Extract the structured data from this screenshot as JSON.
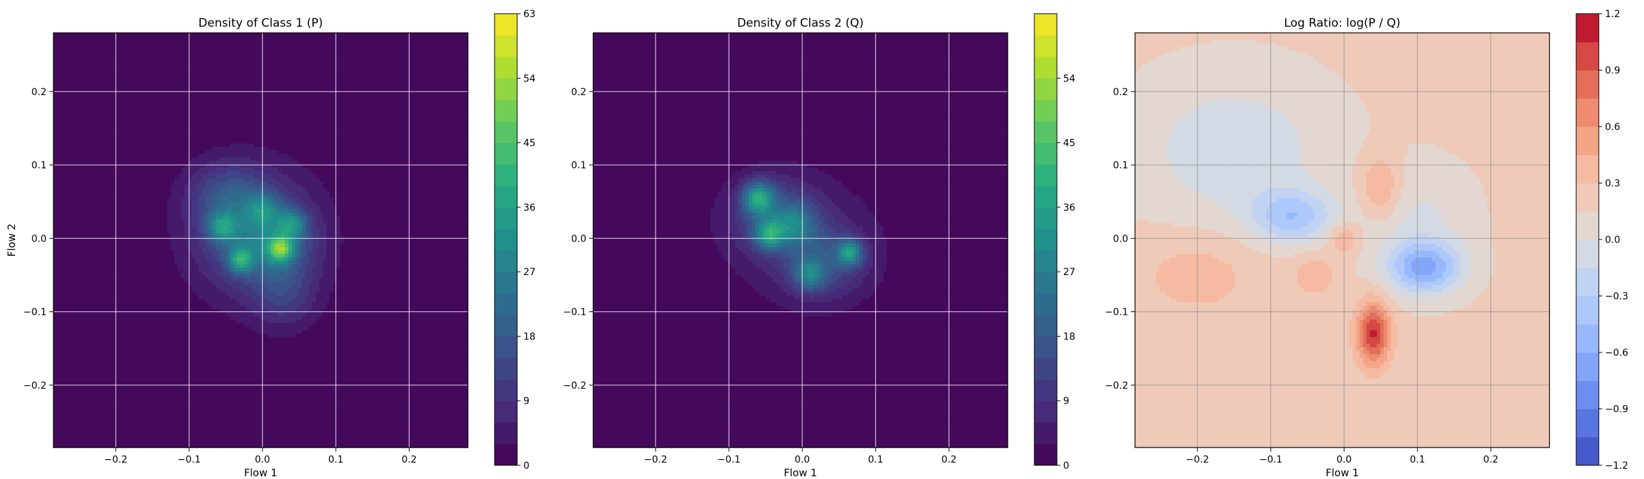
{
  "chart_data": [
    {
      "type": "heatmap",
      "title": "Density of Class 1 (P)",
      "xlabel": "Flow 1",
      "ylabel": "Flow 2",
      "xlim": [
        -0.285,
        0.28
      ],
      "ylim": [
        -0.285,
        0.28
      ],
      "xticks": [
        -0.2,
        -0.1,
        0.0,
        0.1,
        0.2
      ],
      "yticks": [
        -0.2,
        -0.1,
        0.0,
        0.1,
        0.2
      ],
      "xtick_labels": [
        "−0.2",
        "−0.1",
        "0.0",
        "0.1",
        "0.2"
      ],
      "ytick_labels": [
        "−0.2",
        "−0.1",
        "0.0",
        "0.1",
        "0.2"
      ],
      "grid": true,
      "colormap": "viridis",
      "colorbar": {
        "min": 0,
        "max": 63,
        "ticks": [
          0,
          9,
          18,
          27,
          36,
          45,
          54,
          63
        ],
        "tick_labels": [
          "0",
          "9",
          "18",
          "27",
          "36",
          "45",
          "54",
          "63"
        ],
        "levels": 21
      },
      "blobs": [
        {
          "x": 0.0,
          "y": 0.0,
          "sx": 0.08,
          "sy": 0.085,
          "w": 5
        },
        {
          "x": -0.02,
          "y": 0.01,
          "sx": 0.05,
          "sy": 0.05,
          "w": 14
        },
        {
          "x": 0.02,
          "y": -0.01,
          "sx": 0.035,
          "sy": 0.035,
          "w": 12
        },
        {
          "x": -0.05,
          "y": 0.06,
          "sx": 0.035,
          "sy": 0.03,
          "w": 10
        },
        {
          "x": 0.03,
          "y": -0.08,
          "sx": 0.03,
          "sy": 0.03,
          "w": 8
        },
        {
          "x": 0.025,
          "y": -0.015,
          "sx": 0.012,
          "sy": 0.012,
          "w": 30
        },
        {
          "x": -0.03,
          "y": -0.03,
          "sx": 0.012,
          "sy": 0.012,
          "w": 25
        },
        {
          "x": -0.055,
          "y": 0.015,
          "sx": 0.014,
          "sy": 0.014,
          "w": 20
        },
        {
          "x": 0.04,
          "y": 0.02,
          "sx": 0.014,
          "sy": 0.014,
          "w": 18
        },
        {
          "x": 0.0,
          "y": 0.04,
          "sx": 0.015,
          "sy": 0.015,
          "w": 14
        }
      ]
    },
    {
      "type": "heatmap",
      "title": "Density of Class 2 (Q)",
      "xlabel": "Flow 1",
      "ylabel": "",
      "xlim": [
        -0.285,
        0.28
      ],
      "ylim": [
        -0.285,
        0.28
      ],
      "xticks": [
        -0.2,
        -0.1,
        0.0,
        0.1,
        0.2
      ],
      "yticks": [
        -0.2,
        -0.1,
        0.0,
        0.1,
        0.2
      ],
      "xtick_labels": [
        "−0.2",
        "−0.1",
        "0.0",
        "0.1",
        "0.2"
      ],
      "ytick_labels": [
        "−0.2",
        "−0.1",
        "0.0",
        "0.1",
        "0.2"
      ],
      "grid": true,
      "colormap": "viridis",
      "colorbar": {
        "min": 0,
        "max": 63,
        "ticks": [
          0,
          9,
          18,
          27,
          36,
          45,
          54
        ],
        "tick_labels": [
          "0",
          "9",
          "18",
          "27",
          "36",
          "45",
          "54"
        ],
        "levels": 21
      },
      "blobs": [
        {
          "x": 0.0,
          "y": 0.0,
          "sx": 0.085,
          "sy": 0.075,
          "w": 5
        },
        {
          "x": -0.04,
          "y": 0.03,
          "sx": 0.04,
          "sy": 0.035,
          "w": 13
        },
        {
          "x": 0.03,
          "y": -0.03,
          "sx": 0.04,
          "sy": 0.035,
          "w": 12
        },
        {
          "x": -0.06,
          "y": 0.055,
          "sx": 0.015,
          "sy": 0.015,
          "w": 28
        },
        {
          "x": -0.045,
          "y": 0.005,
          "sx": 0.014,
          "sy": 0.014,
          "w": 24
        },
        {
          "x": 0.065,
          "y": -0.02,
          "sx": 0.012,
          "sy": 0.012,
          "w": 26
        },
        {
          "x": 0.01,
          "y": -0.05,
          "sx": 0.015,
          "sy": 0.015,
          "w": 18
        },
        {
          "x": -0.01,
          "y": 0.02,
          "sx": 0.02,
          "sy": 0.02,
          "w": 14
        }
      ]
    },
    {
      "type": "heatmap",
      "title": "Log Ratio: log(P / Q)",
      "xlabel": "Flow 1",
      "ylabel": "",
      "xlim": [
        -0.285,
        0.28
      ],
      "ylim": [
        -0.285,
        0.28
      ],
      "xticks": [
        -0.2,
        -0.1,
        0.0,
        0.1,
        0.2
      ],
      "yticks": [
        -0.2,
        -0.1,
        0.0,
        0.1,
        0.2
      ],
      "xtick_labels": [
        "−0.2",
        "−0.1",
        "0.0",
        "0.1",
        "0.2"
      ],
      "ytick_labels": [
        "−0.2",
        "−0.1",
        "0.0",
        "0.1",
        "0.2"
      ],
      "grid": true,
      "colormap": "coolwarm",
      "colorbar": {
        "min": -1.2,
        "max": 1.2,
        "ticks": [
          -1.2,
          -0.9,
          -0.6,
          -0.3,
          0.0,
          0.3,
          0.6,
          0.9,
          1.2
        ],
        "tick_labels": [
          "−1.2",
          "−0.9",
          "−0.6",
          "−0.3",
          "0.0",
          "0.3",
          "0.6",
          "0.9",
          "1.2"
        ],
        "levels": 16
      },
      "baseline": 0.18,
      "blobs": [
        {
          "x": -0.15,
          "y": 0.12,
          "sx": 0.09,
          "sy": 0.07,
          "w": -0.3
        },
        {
          "x": -0.07,
          "y": 0.03,
          "sx": 0.04,
          "sy": 0.025,
          "w": -0.55
        },
        {
          "x": 0.11,
          "y": -0.04,
          "sx": 0.035,
          "sy": 0.025,
          "w": -0.8
        },
        {
          "x": 0.1,
          "y": 0.03,
          "sx": 0.05,
          "sy": 0.05,
          "w": -0.2
        },
        {
          "x": 0.04,
          "y": -0.13,
          "sx": 0.016,
          "sy": 0.03,
          "w": 0.9
        },
        {
          "x": 0.05,
          "y": 0.07,
          "sx": 0.02,
          "sy": 0.03,
          "w": 0.35
        },
        {
          "x": 0.0,
          "y": 0.0,
          "sx": 0.015,
          "sy": 0.015,
          "w": 0.3
        },
        {
          "x": -0.04,
          "y": -0.05,
          "sx": 0.02,
          "sy": 0.02,
          "w": 0.25
        },
        {
          "x": -0.2,
          "y": -0.05,
          "sx": 0.06,
          "sy": 0.04,
          "w": 0.2
        }
      ]
    }
  ]
}
